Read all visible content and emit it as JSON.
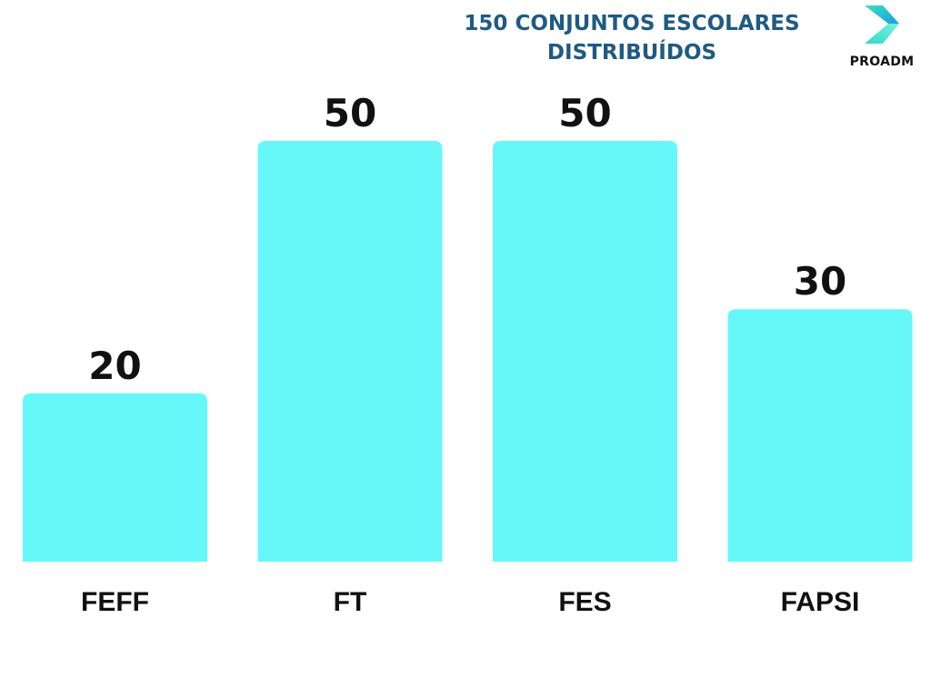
{
  "chart_data": {
    "type": "bar",
    "title": "150 CONJUNTOS ESCOLARES DISTRIBUÍDOS",
    "title_lines": [
      "150 CONJUNTOS ESCOLARES",
      "DISTRIBUÍDOS"
    ],
    "categories": [
      "FEFF",
      "FT",
      "FES",
      "FAPSI"
    ],
    "values": [
      20,
      50,
      50,
      30
    ],
    "value_labels": [
      "20",
      "50",
      "50",
      "30"
    ],
    "xlabel": "",
    "ylabel": "",
    "ylim": [
      0,
      50
    ],
    "grid": false,
    "bar_color": "#66f8f8",
    "title_color": "#1f5a82"
  },
  "logo": {
    "text": "PROADM",
    "icon": "play-arrow-icon",
    "colors": [
      "#2fd3c6",
      "#1fa3d6"
    ]
  }
}
